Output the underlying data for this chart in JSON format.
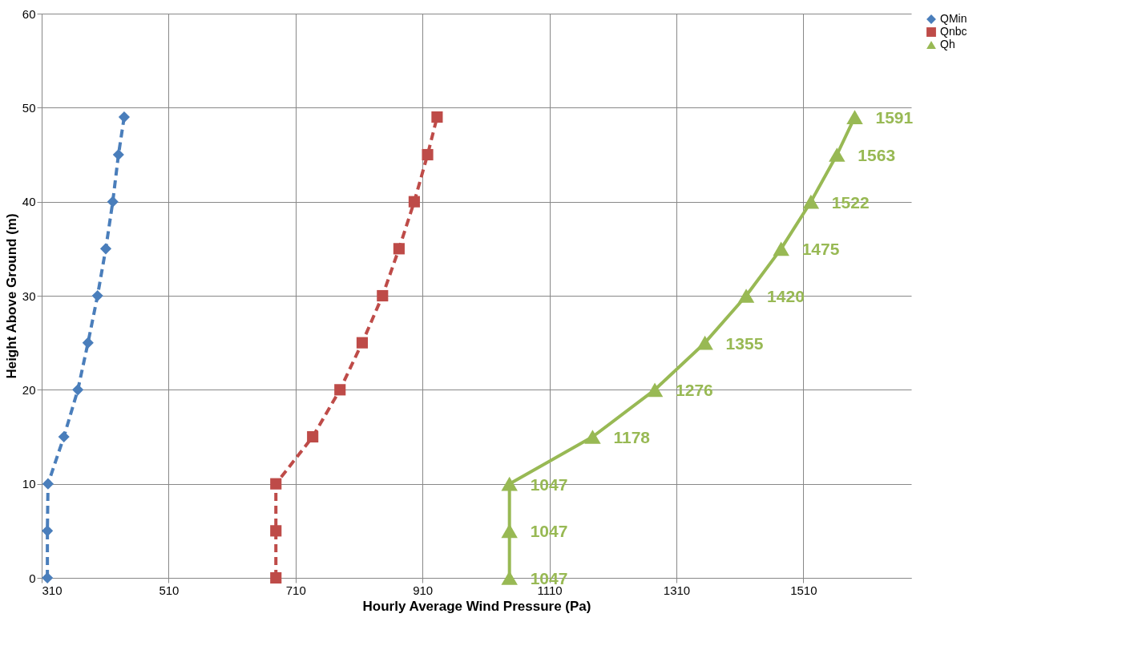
{
  "chart_data": {
    "type": "line",
    "xlabel": "Hourly Average Wind Pressure (Pa)",
    "ylabel": "Height Above Ground (m)",
    "xlim": [
      310,
      1680
    ],
    "xticks": [
      310,
      510,
      710,
      910,
      1110,
      1310,
      1510
    ],
    "ylim": [
      0,
      60
    ],
    "yticks": [
      0,
      10,
      20,
      30,
      40,
      50,
      60
    ],
    "grid": true,
    "legend": "right",
    "series": [
      {
        "name": "QMin",
        "color": "#4a7ebb",
        "marker": "diamond",
        "line_style": "dashed",
        "x": [
          319,
          319,
          320,
          345,
          367,
          383,
          398,
          411,
          422,
          431,
          440
        ],
        "values": [
          0,
          5,
          10,
          15,
          20,
          25,
          30,
          35,
          40,
          45,
          49
        ]
      },
      {
        "name": "Qnbc",
        "color": "#be4b48",
        "marker": "square",
        "line_style": "dashed",
        "x": [
          679,
          679,
          679,
          737,
          780,
          815,
          847,
          873,
          897,
          918,
          933
        ],
        "values": [
          0,
          5,
          10,
          15,
          20,
          25,
          30,
          35,
          40,
          45,
          49
        ]
      },
      {
        "name": "Qh",
        "color": "#98b954",
        "marker": "triangle",
        "line_style": "solid",
        "x": [
          1047,
          1047,
          1047,
          1178,
          1276,
          1355,
          1420,
          1475,
          1522,
          1563,
          1591
        ],
        "values": [
          0,
          5,
          10,
          15,
          20,
          25,
          30,
          35,
          40,
          45,
          49
        ]
      }
    ],
    "annotations": [
      {
        "text": "1047",
        "x": 1047,
        "y": 0
      },
      {
        "text": "1047",
        "x": 1047,
        "y": 5
      },
      {
        "text": "1047",
        "x": 1047,
        "y": 10
      },
      {
        "text": "1178",
        "x": 1178,
        "y": 15
      },
      {
        "text": "1276",
        "x": 1276,
        "y": 20
      },
      {
        "text": "1355",
        "x": 1355,
        "y": 25
      },
      {
        "text": "1420",
        "x": 1420,
        "y": 30
      },
      {
        "text": "1475",
        "x": 1475,
        "y": 35
      },
      {
        "text": "1522",
        "x": 1522,
        "y": 40
      },
      {
        "text": "1563",
        "x": 1563,
        "y": 45
      },
      {
        "text": "1591",
        "x": 1591,
        "y": 49
      }
    ]
  }
}
